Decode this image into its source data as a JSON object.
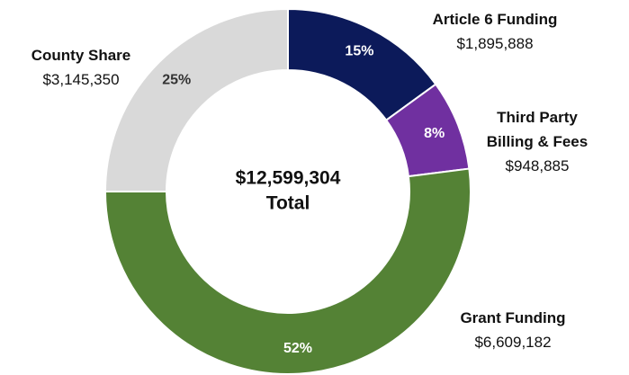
{
  "chart_data": {
    "type": "donut",
    "categories": [
      "Article 6 Funding",
      "Third Party Billing & Fees",
      "Grant Funding",
      "County Share"
    ],
    "values": [
      15,
      8,
      52,
      25
    ],
    "value_labels": [
      "15%",
      "8%",
      "52%",
      "25%"
    ],
    "amount_labels": [
      "$1,895,888",
      "$948,885",
      "$6,609,182",
      "$3,145,350"
    ],
    "colors": [
      "#0c1a5a",
      "#7030a0",
      "#548235",
      "#d9d9d9"
    ],
    "label_colors": [
      "#ffffff",
      "#ffffff",
      "#ffffff",
      "#333333"
    ],
    "center_label": "$12,599,304",
    "center_sublabel": "Total"
  }
}
